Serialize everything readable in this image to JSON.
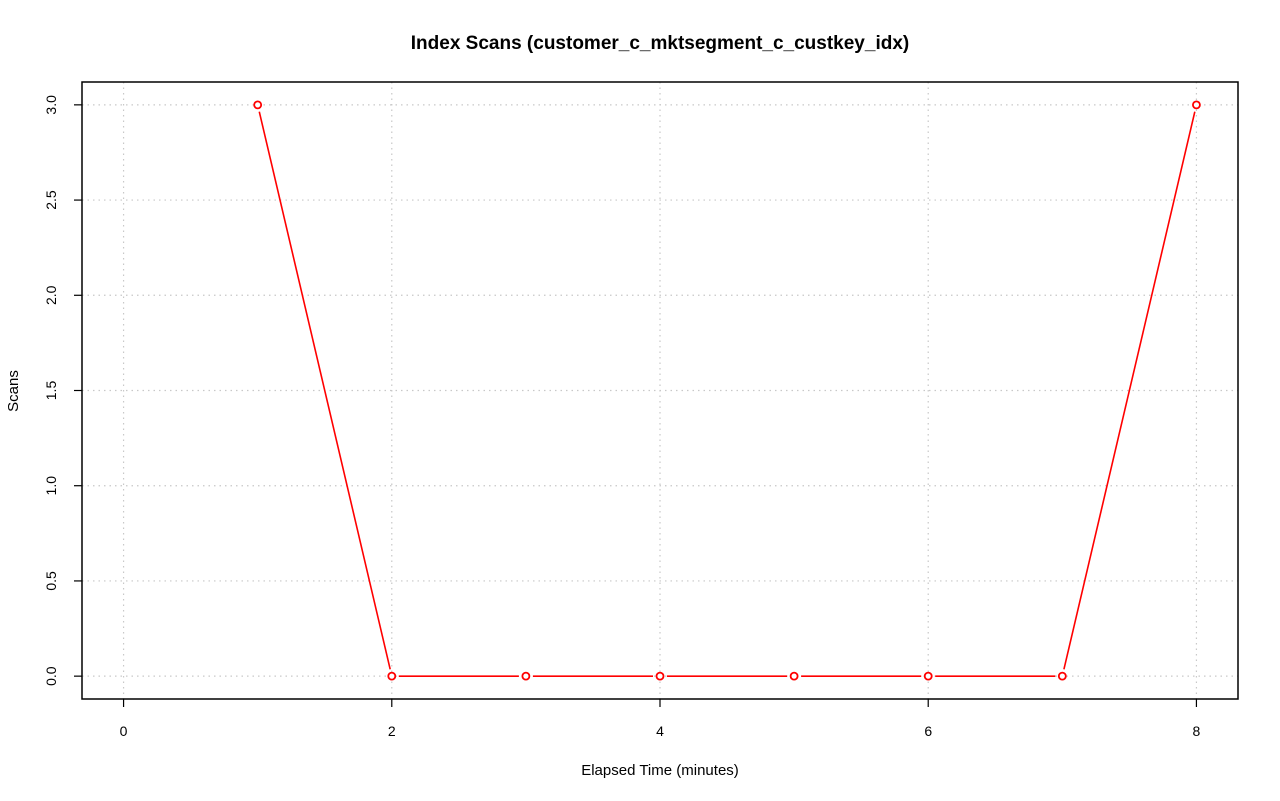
{
  "chart_data": {
    "type": "line",
    "title": "Index Scans (customer_c_mktsegment_c_custkey_idx)",
    "xlabel": "Elapsed Time (minutes)",
    "ylabel": "Scans",
    "xlim": [
      -0.31,
      8.31
    ],
    "ylim": [
      -0.12,
      3.12
    ],
    "x_ticks": [
      0,
      2,
      4,
      6,
      8
    ],
    "x_tick_labels": [
      "0",
      "2",
      "4",
      "6",
      "8"
    ],
    "y_ticks": [
      0,
      0.5,
      1,
      1.5,
      2,
      2.5,
      3
    ],
    "y_tick_labels": [
      "0.0",
      "0.5",
      "1.0",
      "1.5",
      "2.0",
      "2.5",
      "3.0"
    ],
    "grid": true,
    "grid_style": "dotted",
    "x_grid": [
      0,
      2,
      4,
      6,
      8
    ],
    "y_grid": [
      0,
      0.5,
      1,
      1.5,
      2,
      2.5,
      3
    ],
    "series": [
      {
        "color": "#ff0000",
        "marker": "open-circle",
        "x": [
          1,
          2,
          3,
          4,
          5,
          6,
          7,
          8
        ],
        "y": [
          3,
          0,
          0,
          0,
          0,
          0,
          0,
          3
        ]
      }
    ]
  }
}
